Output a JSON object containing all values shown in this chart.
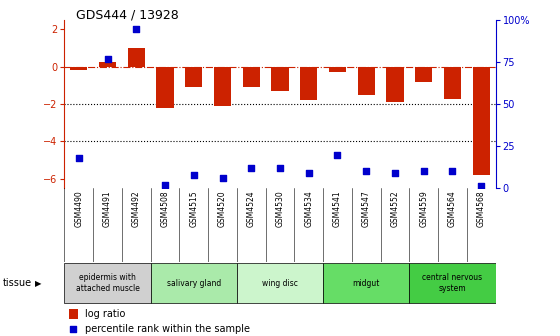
{
  "title": "GDS444 / 13928",
  "samples": [
    "GSM4490",
    "GSM4491",
    "GSM4492",
    "GSM4508",
    "GSM4515",
    "GSM4520",
    "GSM4524",
    "GSM4530",
    "GSM4534",
    "GSM4541",
    "GSM4547",
    "GSM4552",
    "GSM4559",
    "GSM4564",
    "GSM4568"
  ],
  "log_ratio": [
    -0.15,
    0.25,
    1.0,
    -2.2,
    -1.1,
    -2.1,
    -1.1,
    -1.3,
    -1.8,
    -0.3,
    -1.5,
    -1.9,
    -0.8,
    -1.7,
    -5.8
  ],
  "percentile_rank": [
    18,
    77,
    95,
    2,
    8,
    6,
    12,
    12,
    9,
    20,
    10,
    9,
    10,
    10,
    1
  ],
  "tissue_groups": [
    {
      "label": "epidermis with\nattached muscle",
      "start": 0,
      "end": 3,
      "color": "#d0d0d0"
    },
    {
      "label": "salivary gland",
      "start": 3,
      "end": 6,
      "color": "#aaeaaa"
    },
    {
      "label": "wing disc",
      "start": 6,
      "end": 9,
      "color": "#ccf5cc"
    },
    {
      "label": "midgut",
      "start": 9,
      "end": 12,
      "color": "#66dd66"
    },
    {
      "label": "central nervous\nsystem",
      "start": 12,
      "end": 15,
      "color": "#44cc44"
    }
  ],
  "bar_color": "#cc2200",
  "dot_color": "#0000cc",
  "ylim_left": [
    -6.5,
    2.5
  ],
  "ylim_right": [
    0,
    100
  ],
  "y_ticks_left": [
    -6,
    -4,
    -2,
    0,
    2
  ],
  "y_ticks_right": [
    0,
    25,
    50,
    75,
    100
  ],
  "dotted_lines": [
    -2,
    -4
  ],
  "background_color": "#ffffff",
  "label_bg": "#cccccc"
}
